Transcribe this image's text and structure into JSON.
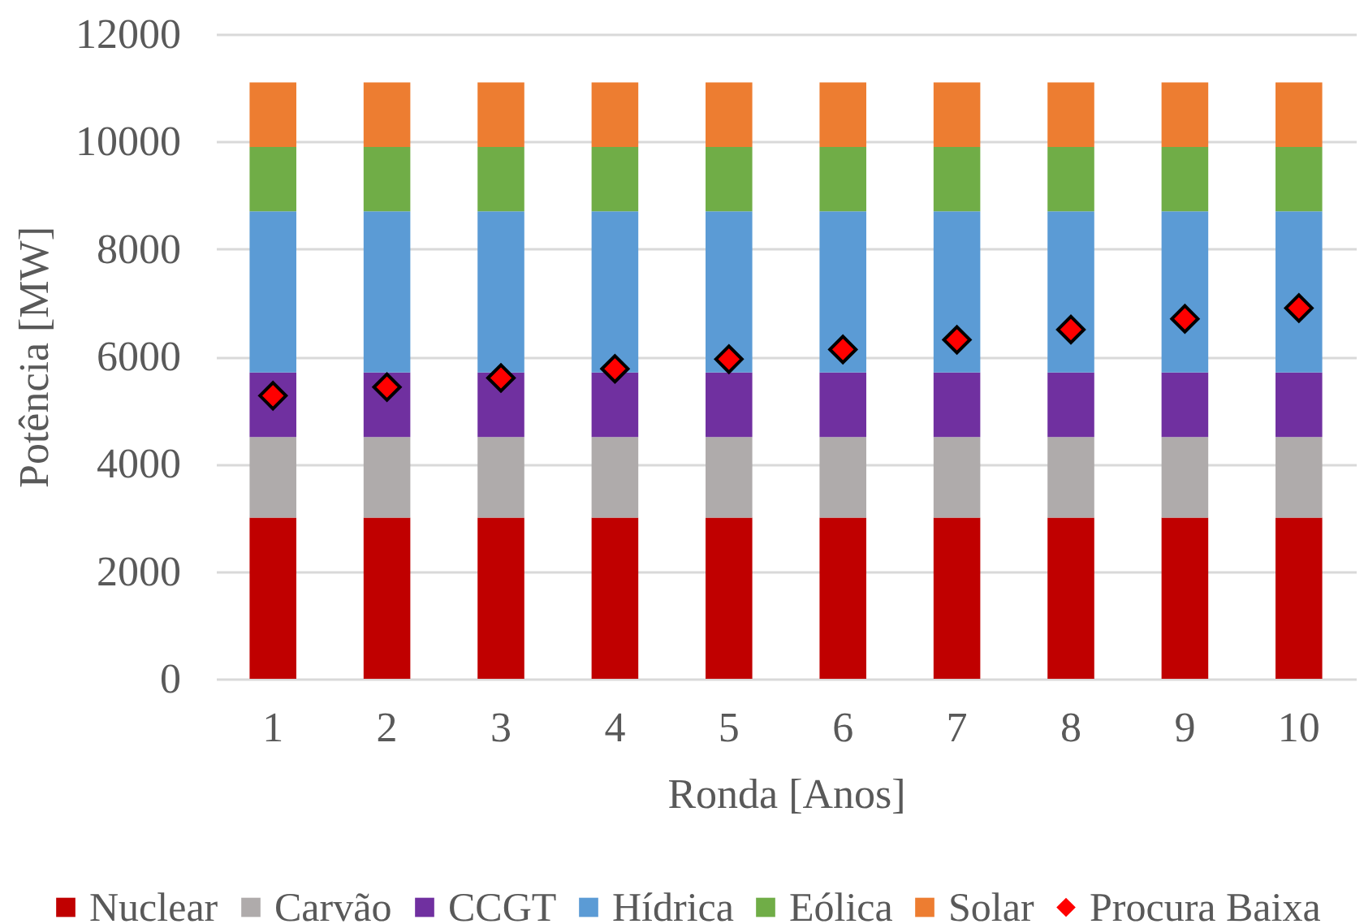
{
  "chart_data": {
    "type": "bar",
    "stacked": true,
    "xlabel": "Ronda [Anos]",
    "ylabel": "Potência [MW]",
    "categories": [
      "1",
      "2",
      "3",
      "4",
      "5",
      "6",
      "7",
      "8",
      "9",
      "10"
    ],
    "ylim": [
      0,
      12000
    ],
    "yticks": [
      0,
      2000,
      4000,
      6000,
      8000,
      10000,
      12000
    ],
    "grid": "y",
    "legend": "bottom",
    "marker": "diamond",
    "series": [
      {
        "name": "Nuclear",
        "color": "#c00000",
        "values": [
          3000,
          3000,
          3000,
          3000,
          3000,
          3000,
          3000,
          3000,
          3000,
          3000
        ]
      },
      {
        "name": "Carvão",
        "color": "#afabab",
        "values": [
          1500,
          1500,
          1500,
          1500,
          1500,
          1500,
          1500,
          1500,
          1500,
          1500
        ]
      },
      {
        "name": "CCGT",
        "color": "#7030a0",
        "values": [
          1200,
          1200,
          1200,
          1200,
          1200,
          1200,
          1200,
          1200,
          1200,
          1200
        ]
      },
      {
        "name": "Hídrica",
        "color": "#5b9bd5",
        "values": [
          3000,
          3000,
          3000,
          3000,
          3000,
          3000,
          3000,
          3000,
          3000,
          3000
        ]
      },
      {
        "name": "Eólica",
        "color": "#70ad47",
        "values": [
          1200,
          1200,
          1200,
          1200,
          1200,
          1200,
          1200,
          1200,
          1200,
          1200
        ]
      },
      {
        "name": "Solar",
        "color": "#ed7d31",
        "values": [
          1200,
          1200,
          1200,
          1200,
          1200,
          1200,
          1200,
          1200,
          1200,
          1200
        ]
      },
      {
        "name": "Procura Baixa",
        "type": "scatter",
        "color": "#ff0000",
        "values": [
          5270,
          5430,
          5600,
          5770,
          5950,
          6130,
          6310,
          6500,
          6700,
          6900
        ]
      }
    ]
  }
}
